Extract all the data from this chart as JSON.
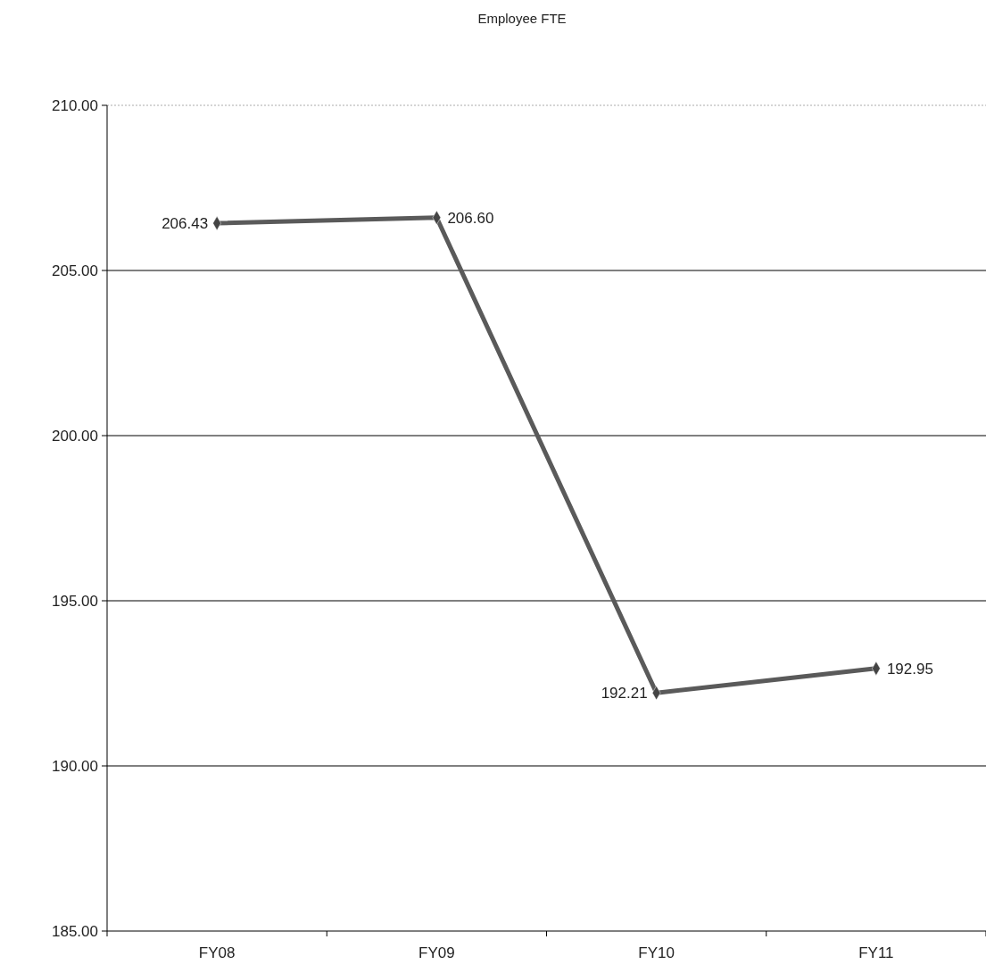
{
  "chart_data": {
    "type": "line",
    "title": "Employee FTE",
    "categories": [
      "FY08",
      "FY09",
      "FY10",
      "FY11"
    ],
    "series": [
      {
        "color": "#5a5a5a",
        "values": [
          206.43,
          206.6,
          192.21,
          192.95
        ],
        "value_labels": [
          "206.43",
          "206.60",
          "192.21",
          "192.95"
        ]
      }
    ],
    "ylim": [
      185,
      210
    ],
    "yticks": [
      {
        "value": 185,
        "label": "185.00"
      },
      {
        "value": 190,
        "label": "190.00"
      },
      {
        "value": 195,
        "label": "195.00"
      },
      {
        "value": 200,
        "label": "200.00"
      },
      {
        "value": 205,
        "label": "205.00"
      },
      {
        "value": 210,
        "label": "210.00"
      }
    ],
    "grid": "y",
    "marker": "diamond",
    "line_style": "solid"
  }
}
